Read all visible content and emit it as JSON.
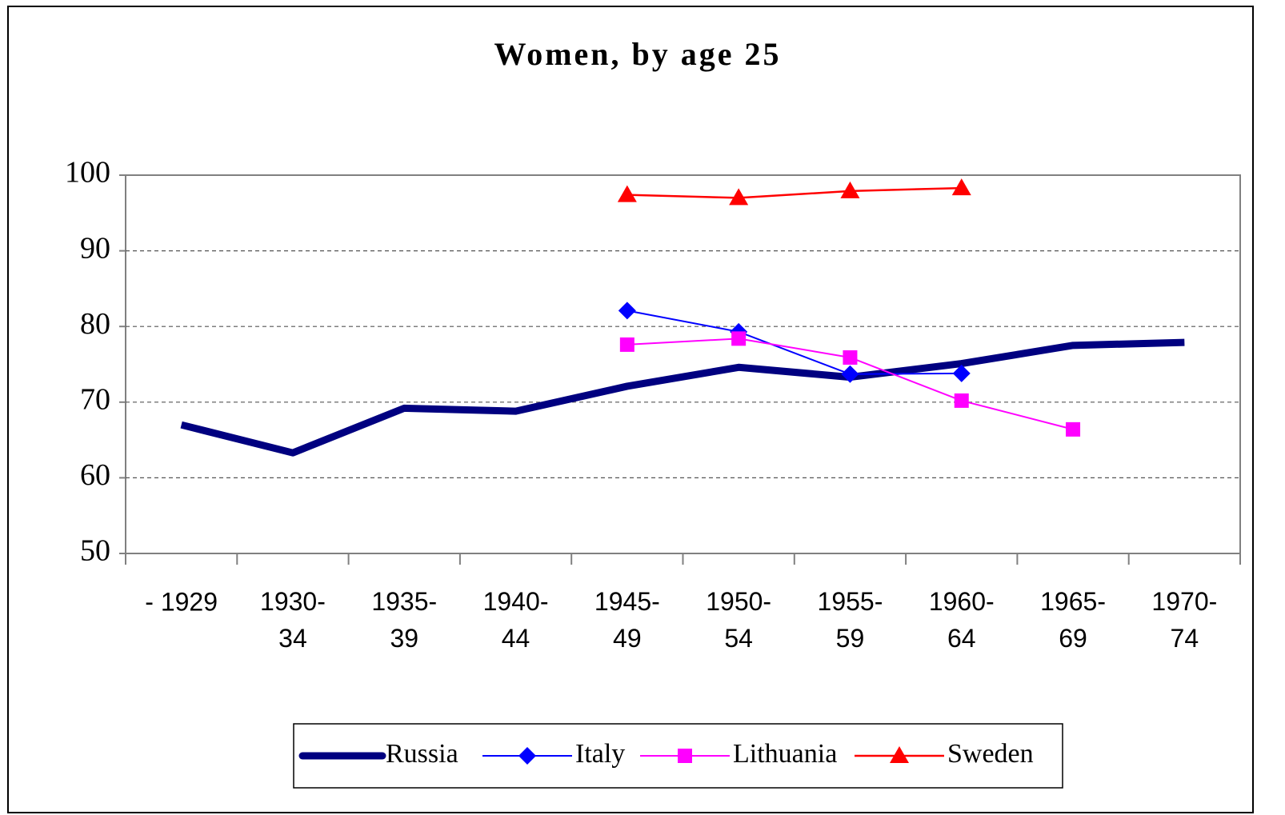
{
  "chart_data": {
    "type": "line",
    "title": "Women, by age 25",
    "categories": [
      "- 1929",
      "1930-\n34",
      "1935-\n39",
      "1940-\n44",
      "1945-\n49",
      "1950-\n54",
      "1955-\n59",
      "1960-\n64",
      "1965-\n69",
      "1970-\n74"
    ],
    "series": [
      {
        "name": "Russia",
        "color": "#000080",
        "marker": "none",
        "width": 9,
        "values": [
          67,
          63.3,
          69.2,
          68.8,
          72.1,
          74.6,
          73.3,
          75.1,
          77.5,
          77.9
        ]
      },
      {
        "name": "Italy",
        "color": "#0000ff",
        "marker": "diamond",
        "width": 2,
        "values": [
          null,
          null,
          null,
          null,
          82.1,
          79.3,
          73.7,
          73.8,
          null,
          null
        ]
      },
      {
        "name": "Lithuania",
        "color": "#ff00ff",
        "marker": "square",
        "width": 2,
        "values": [
          null,
          null,
          null,
          null,
          77.6,
          78.4,
          75.9,
          70.2,
          66.4,
          null
        ]
      },
      {
        "name": "Sweden",
        "color": "#ff0000",
        "marker": "triangle",
        "width": 2.5,
        "values": [
          null,
          null,
          null,
          null,
          97.4,
          97.0,
          97.9,
          98.3,
          null,
          null
        ]
      }
    ],
    "ylim": [
      50,
      100
    ],
    "yticks": [
      50,
      60,
      70,
      80,
      90,
      100
    ],
    "grid": true,
    "legend": "bottom"
  }
}
